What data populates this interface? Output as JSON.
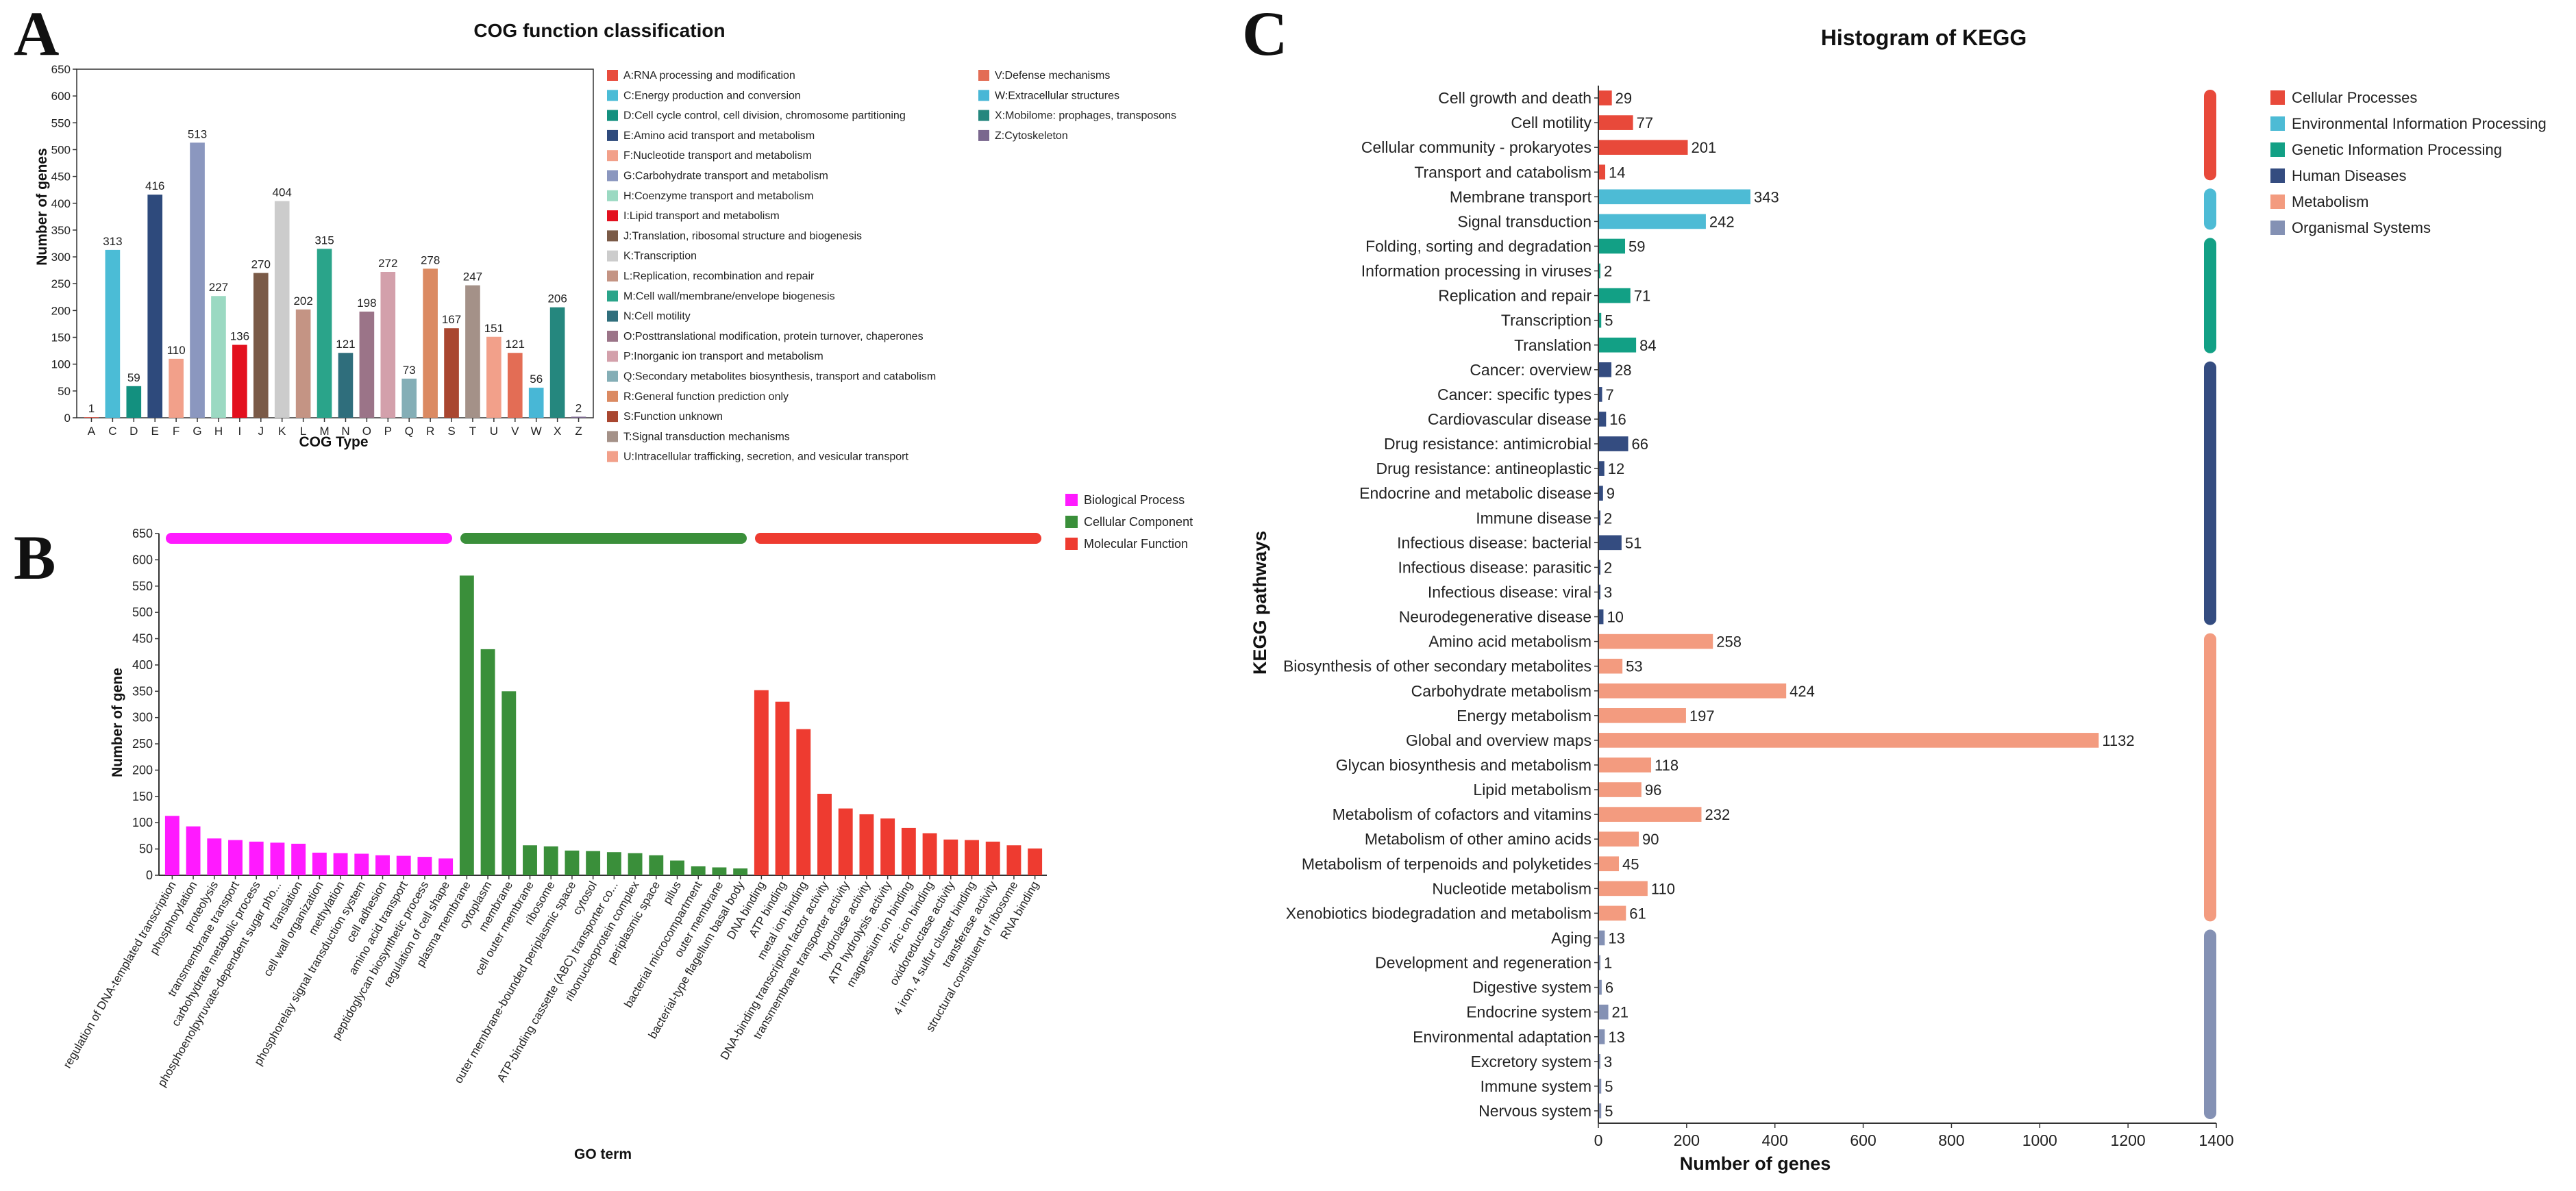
{
  "panels": {
    "a": "A",
    "b": "B",
    "c": "C"
  },
  "chart_data": [
    {
      "id": "cog",
      "type": "bar",
      "title": "COG function classification",
      "xlabel": "COG Type",
      "ylabel": "Number of genes",
      "ylim": [
        0,
        650
      ],
      "yticks": [
        0,
        50,
        100,
        150,
        200,
        250,
        300,
        350,
        400,
        450,
        500,
        550,
        600,
        650
      ],
      "categories": [
        "A",
        "C",
        "D",
        "E",
        "F",
        "G",
        "H",
        "I",
        "J",
        "K",
        "L",
        "M",
        "N",
        "O",
        "P",
        "Q",
        "R",
        "S",
        "T",
        "U",
        "V",
        "W",
        "X",
        "Z"
      ],
      "values": [
        1,
        313,
        59,
        416,
        110,
        513,
        227,
        136,
        270,
        404,
        202,
        315,
        121,
        198,
        272,
        73,
        278,
        167,
        247,
        151,
        121,
        56,
        206,
        2
      ],
      "colors": [
        "#e84c3d",
        "#4bbcd6",
        "#13907f",
        "#2e4a7c",
        "#f2a08a",
        "#8b97bf",
        "#9bd9c2",
        "#e3101e",
        "#7a5a47",
        "#cccccc",
        "#c49484",
        "#2aa48a",
        "#2f6e7c",
        "#9b7488",
        "#d3a0ab",
        "#84aeb6",
        "#db8a62",
        "#a94630",
        "#a49188",
        "#f2a08a",
        "#e36d55",
        "#48b7d6",
        "#25877e",
        "#7a678e"
      ],
      "legend": [
        "A:RNA processing and modification",
        "C:Energy production and conversion",
        "D:Cell cycle control, cell division, chromosome partitioning",
        "E:Amino acid transport and metabolism",
        "F:Nucleotide transport and metabolism",
        "G:Carbohydrate transport and metabolism",
        "H:Coenzyme transport and metabolism",
        "I:Lipid transport and metabolism",
        "J:Translation, ribosomal structure and biogenesis",
        "K:Transcription",
        "L:Replication, recombination and repair",
        "M:Cell wall/membrane/envelope biogenesis",
        "N:Cell motility",
        "O:Posttranslational modification, protein turnover, chaperones",
        "P:Inorganic ion transport and metabolism",
        "Q:Secondary metabolites biosynthesis, transport and catabolism",
        "R:General function prediction only",
        "S:Function unknown",
        "T:Signal transduction mechanisms",
        "U:Intracellular trafficking, secretion, and vesicular transport",
        "V:Defense mechanisms",
        "W:Extracellular structures",
        "X:Mobilome: prophages, transposons",
        "Z:Cytoskeleton"
      ],
      "legend_placement": "right"
    },
    {
      "id": "go",
      "type": "bar",
      "title": "",
      "xlabel": "GO term",
      "ylabel": "Number of gene",
      "ylim": [
        0,
        650
      ],
      "yticks": [
        0,
        50,
        100,
        150,
        200,
        250,
        300,
        350,
        400,
        450,
        500,
        550,
        600,
        650
      ],
      "series": [
        {
          "name": "Biological Process",
          "color": "#ff1aff",
          "categories": [
            "regulation of DNA-templated transcription",
            "phosphorylation",
            "proteolysis",
            "transmembrane transport",
            "carbohydrate metabolic process",
            "phosphoenolpyruvate-dependent sugar pho...",
            "translation",
            "cell wall organization",
            "methylation",
            "phosphorelay signal transduction system",
            "cell adhesion",
            "amino acid transport",
            "peptidoglycan biosynthetic process",
            "regulation of cell shape"
          ],
          "values": [
            113,
            93,
            70,
            67,
            64,
            62,
            60,
            43,
            42,
            41,
            38,
            37,
            35,
            32
          ]
        },
        {
          "name": "Cellular Component",
          "color": "#3a8f3a",
          "categories": [
            "plasma membrane",
            "cytoplasm",
            "membrane",
            "cell outer membrane",
            "ribosome",
            "outer membrane-bounded periplasmic space",
            "cytosol",
            "ATP-binding cassette (ABC) transporter co...",
            "ribonucleoprotein complex",
            "periplasmic space",
            "pilus",
            "bacterial microcompartment",
            "outer membrane",
            "bacterial-type flagellum basal body"
          ],
          "values": [
            570,
            430,
            350,
            57,
            55,
            47,
            46,
            44,
            42,
            38,
            28,
            17,
            15,
            13
          ]
        },
        {
          "name": "Molecular Function",
          "color": "#ee3b30",
          "categories": [
            "DNA binding",
            "ATP binding",
            "metal ion binding",
            "DNA-binding transcription factor activity",
            "transmembrane transporter activity",
            "hydrolase activity",
            "ATP hydrolysis activity",
            "magnesium ion binding",
            "zinc ion binding",
            "oxidoreductase activity",
            "4 iron, 4 sulfur cluster binding",
            "transferase activity",
            "structural constituent of ribosome",
            "RNA binding"
          ],
          "values": [
            352,
            330,
            278,
            155,
            127,
            116,
            108,
            90,
            80,
            68,
            67,
            64,
            57,
            51
          ]
        }
      ],
      "legend_placement": "top-right"
    },
    {
      "id": "kegg",
      "type": "bar",
      "orientation": "horizontal",
      "title": "Histogram of KEGG",
      "xlabel": "Number of genes",
      "ylabel": "KEGG pathways",
      "xlim": [
        0,
        1400
      ],
      "xticks": [
        0,
        200,
        400,
        600,
        800,
        1000,
        1200,
        1400
      ],
      "categories": [
        "Cell growth and death",
        "Cell motility",
        "Cellular community - prokaryotes",
        "Transport and catabolism",
        "Membrane transport",
        "Signal transduction",
        "Folding, sorting and degradation",
        "Information processing in viruses",
        "Replication and repair",
        "Transcription",
        "Translation",
        "Cancer: overview",
        "Cancer: specific types",
        "Cardiovascular disease",
        "Drug resistance: antimicrobial",
        "Drug resistance: antineoplastic",
        "Endocrine and metabolic disease",
        "Immune disease",
        "Infectious disease: bacterial",
        "Infectious disease: parasitic",
        "Infectious disease: viral",
        "Neurodegenerative disease",
        "Amino acid metabolism",
        "Biosynthesis of other secondary metabolites",
        "Carbohydrate metabolism",
        "Energy metabolism",
        "Global and overview maps",
        "Glycan biosynthesis and metabolism",
        "Lipid metabolism",
        "Metabolism of cofactors and vitamins",
        "Metabolism of other amino acids",
        "Metabolism of terpenoids and polyketides",
        "Nucleotide metabolism",
        "Xenobiotics biodegradation and metabolism",
        "Aging",
        "Development and regeneration",
        "Digestive system",
        "Endocrine system",
        "Environmental adaptation",
        "Excretory system",
        "Immune system",
        "Nervous system"
      ],
      "values": [
        29,
        77,
        201,
        14,
        343,
        242,
        59,
        2,
        71,
        5,
        84,
        28,
        7,
        16,
        66,
        12,
        9,
        2,
        51,
        2,
        3,
        10,
        258,
        53,
        424,
        197,
        1132,
        118,
        96,
        232,
        90,
        45,
        110,
        61,
        13,
        1,
        6,
        21,
        13,
        3,
        5,
        5
      ],
      "groups": [
        {
          "name": "Cellular Processes",
          "color": "#e8493a",
          "count": 4
        },
        {
          "name": "Environmental Information Processing",
          "color": "#4dbbd5",
          "count": 2
        },
        {
          "name": "Genetic Information Processing",
          "color": "#12a085",
          "count": 5
        },
        {
          "name": "Human Diseases",
          "color": "#344c80",
          "count": 11
        },
        {
          "name": "Metabolism",
          "color": "#f39b7f",
          "count": 12
        },
        {
          "name": "Organismal Systems",
          "color": "#8491b4",
          "count": 8
        }
      ],
      "legend_placement": "top-right"
    }
  ]
}
